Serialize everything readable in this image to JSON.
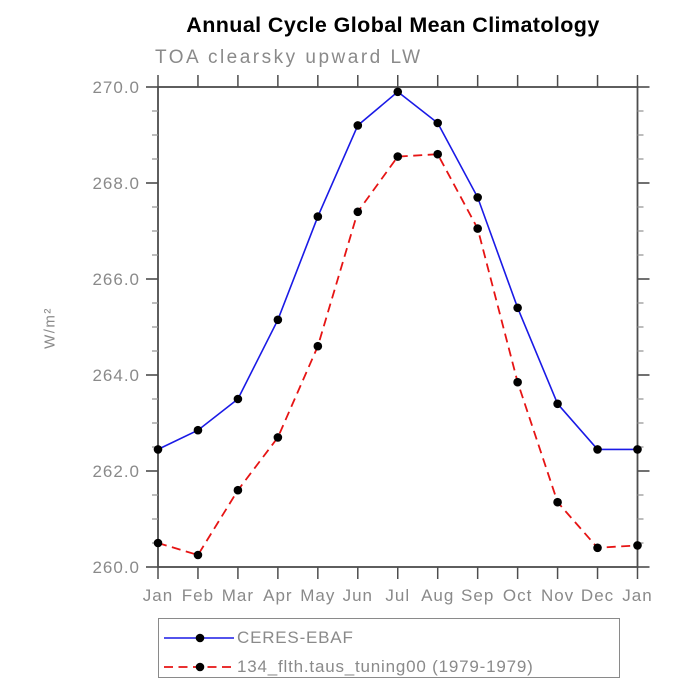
{
  "chart_data": {
    "type": "line",
    "title": "Annual Cycle Global Mean Climatology",
    "subtitle": "TOA clearsky upward LW",
    "ylabel": "W/m²",
    "xlabel": "",
    "categories": [
      "Jan",
      "Feb",
      "Mar",
      "Apr",
      "May",
      "Jun",
      "Jul",
      "Aug",
      "Sep",
      "Oct",
      "Nov",
      "Dec",
      "Jan"
    ],
    "series": [
      {
        "name": "CERES-EBAF",
        "line_style": "solid",
        "color": "#1a1ae6",
        "marker": "filled-circle",
        "marker_color": "#000000",
        "values": [
          262.45,
          262.85,
          263.5,
          265.15,
          267.3,
          269.2,
          269.9,
          269.25,
          267.7,
          265.4,
          263.4,
          262.45,
          262.45
        ]
      },
      {
        "name": "134_flth.taus_tuning00 (1979-1979)",
        "line_style": "dashed",
        "color": "#e61414",
        "marker": "filled-circle",
        "marker_color": "#000000",
        "values": [
          260.5,
          260.25,
          261.6,
          262.7,
          264.6,
          267.4,
          268.55,
          268.6,
          267.05,
          263.85,
          261.35,
          260.4,
          260.45
        ]
      }
    ],
    "ylim": [
      260.0,
      270.0
    ],
    "ytick_major_step": 2.0,
    "ytick_minor_step": 0.5,
    "ytick_labels": [
      "260.0",
      "262.0",
      "264.0",
      "266.0",
      "268.0",
      "270.0"
    ],
    "grid": false,
    "legend_position": "bottom-left",
    "axis_color": "#4d4d4d",
    "label_color": "#8a8a8a"
  }
}
